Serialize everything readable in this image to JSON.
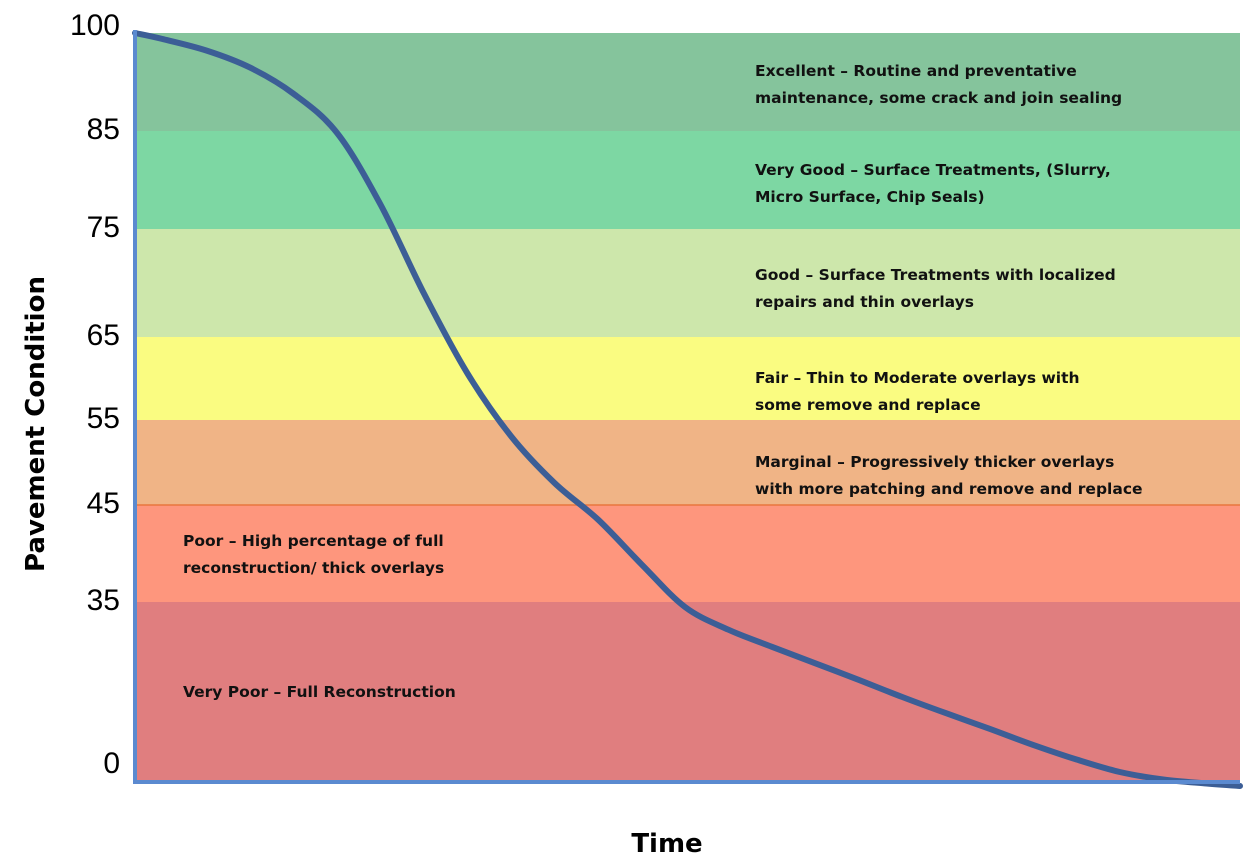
{
  "chart_data": {
    "type": "area",
    "title": "",
    "xlabel": "Time",
    "ylabel": "Pavement Condition",
    "ylim": [
      0,
      100
    ],
    "y_ticks": [
      "100",
      "85",
      "75",
      "65",
      "55",
      "45",
      "35",
      "0"
    ],
    "bands": [
      {
        "name": "Excellent",
        "label": [
          "Excellent – Routine and preventative",
          "maintenance, some crack and join sealing"
        ],
        "color": "#85c49c"
      },
      {
        "name": "Very Good",
        "label": [
          "Very Good – Surface Treatments, (Slurry,",
          "Micro Surface, Chip Seals)"
        ],
        "color": "#7dd7a3"
      },
      {
        "name": "Good",
        "label": [
          "Good – Surface Treatments with localized",
          "repairs and thin overlays"
        ],
        "color": "#cde7ab"
      },
      {
        "name": "Fair",
        "label": [
          "Fair – Thin to Moderate overlays with",
          "some remove and replace"
        ],
        "color": "#fafc81"
      },
      {
        "name": "Marginal",
        "label": [
          "Marginal – Progressively thicker overlays",
          "with more patching and remove and replace"
        ],
        "color": "#f0b486"
      },
      {
        "name": "Poor",
        "label": [
          "Poor – High percentage of full",
          "reconstruction/ thick overlays"
        ],
        "color": "#fe967d"
      },
      {
        "name": "Very Poor",
        "label": [
          "Very Poor – Full Reconstruction"
        ],
        "color": "#e07e7f"
      }
    ],
    "curve_color": "#3c5e96",
    "axis_color": "#5b8ad0",
    "curve": {
      "x": [
        0,
        0.0244,
        0.0649,
        0.1042,
        0.1435,
        0.1829,
        0.2222,
        0.2616,
        0.3009,
        0.3403,
        0.3796,
        0.419,
        0.4583,
        0.4977,
        0.537,
        0.5764,
        0.6157,
        0.6551,
        0.6944,
        0.7338,
        0.7731,
        0.8125,
        0.8518,
        0.8912,
        0.9305,
        0.9699,
        1.0
      ],
      "y": [
        100,
        99.1,
        97.3,
        94.7,
        90.7,
        84.8,
        77.5,
        69.0,
        60.6,
        53.1,
        47.6,
        43.5,
        38.9,
        34.0,
        29.5,
        26.1,
        22.8,
        19.5,
        16.1,
        12.9,
        9.8,
        6.6,
        3.7,
        1.2,
        -0.3,
        -1.1,
        -1.6
      ]
    }
  }
}
